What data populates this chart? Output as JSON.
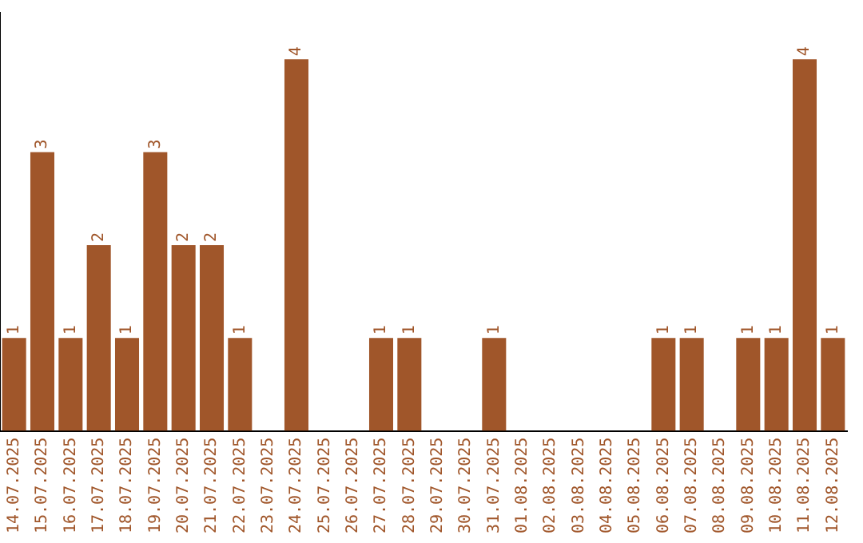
{
  "chart_data": {
    "type": "bar",
    "categories": [
      "14.07.2025",
      "15.07.2025",
      "16.07.2025",
      "17.07.2025",
      "18.07.2025",
      "19.07.2025",
      "20.07.2025",
      "21.07.2025",
      "22.07.2025",
      "23.07.2025",
      "24.07.2025",
      "25.07.2025",
      "26.07.2025",
      "27.07.2025",
      "28.07.2025",
      "29.07.2025",
      "30.07.2025",
      "31.07.2025",
      "01.08.2025",
      "02.08.2025",
      "03.08.2025",
      "04.08.2025",
      "05.08.2025",
      "06.08.2025",
      "07.08.2025",
      "08.08.2025",
      "09.08.2025",
      "10.08.2025",
      "11.08.2025",
      "12.08.2025"
    ],
    "values": [
      1,
      3,
      1,
      2,
      1,
      3,
      2,
      2,
      1,
      0,
      4,
      0,
      0,
      1,
      1,
      0,
      0,
      1,
      0,
      0,
      0,
      0,
      0,
      1,
      1,
      0,
      1,
      1,
      4,
      1
    ],
    "value_labels": [
      "1",
      "3",
      "1",
      "2",
      "1",
      "3",
      "2",
      "2",
      "1",
      null,
      "4",
      null,
      null,
      "1",
      "1",
      null,
      null,
      "1",
      null,
      null,
      null,
      null,
      null,
      "1",
      "1",
      null,
      "1",
      "1",
      "4",
      "1"
    ],
    "color": "#a0562a",
    "grid": false,
    "legend": false,
    "tick_labels": "x"
  }
}
